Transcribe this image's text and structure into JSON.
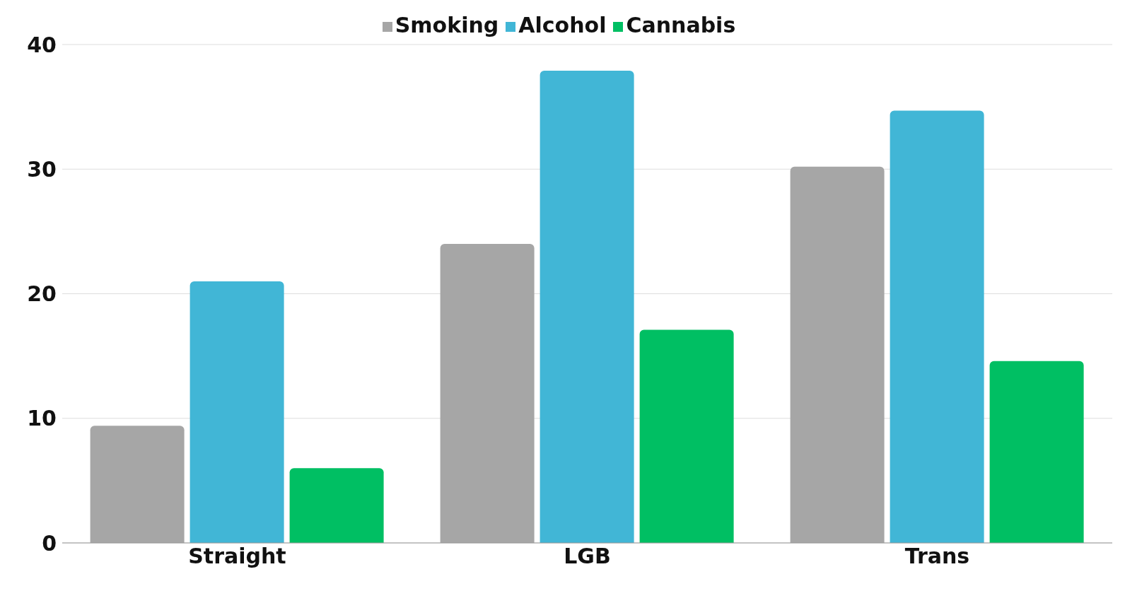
{
  "chart_data": {
    "type": "bar",
    "categories": [
      "Straight",
      "LGB",
      "Trans"
    ],
    "series": [
      {
        "name": "Smoking",
        "color": "#a6a6a6",
        "values": [
          9.4,
          24,
          30.2
        ]
      },
      {
        "name": "Alcohol",
        "color": "#41b6d6",
        "values": [
          21,
          37.9,
          34.7
        ]
      },
      {
        "name": "Cannabis",
        "color": "#00bf63",
        "values": [
          6,
          17.1,
          14.6
        ]
      }
    ],
    "ylim": [
      0,
      40
    ],
    "yticks": [
      0,
      10,
      20,
      30,
      40
    ],
    "grid": "y",
    "legend": "top"
  }
}
